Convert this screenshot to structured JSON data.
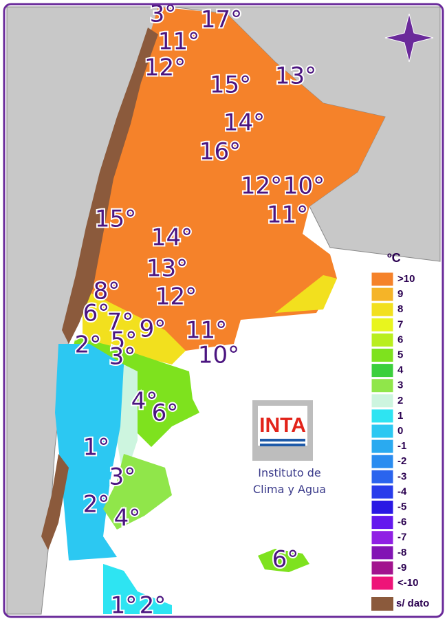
{
  "map": {
    "labels": [
      "3°",
      "17°",
      "11°",
      "12°",
      "15°",
      "13°",
      "14°",
      "16°",
      "12°",
      "10°",
      "11°",
      "15°",
      "14°",
      "13°",
      "12°",
      "8°",
      "6°",
      "7°",
      "9°",
      "11°",
      "5°",
      "2°",
      "3°",
      "10°",
      "4°",
      "6°",
      "1°",
      "3°",
      "2°",
      "4°",
      "6°",
      "1°",
      "2°"
    ],
    "legend": {
      "title": "ºC",
      "items": [
        {
          "label": ">10",
          "color": "#f5822a"
        },
        {
          "label": "9",
          "color": "#f5b428"
        },
        {
          "label": "8",
          "color": "#f2e01e"
        },
        {
          "label": "7",
          "color": "#e8f51e"
        },
        {
          "label": "6",
          "color": "#b9ee1e"
        },
        {
          "label": "5",
          "color": "#7ee21e"
        },
        {
          "label": "4",
          "color": "#3ccf3c"
        },
        {
          "label": "3",
          "color": "#90e64a"
        },
        {
          "label": "2",
          "color": "#cdf5df"
        },
        {
          "label": "1",
          "color": "#2ee4f2"
        },
        {
          "label": "0",
          "color": "#2cc8f2"
        },
        {
          "label": "-1",
          "color": "#2aaaf0"
        },
        {
          "label": "-2",
          "color": "#2a8cf0"
        },
        {
          "label": "-3",
          "color": "#2a64ee"
        },
        {
          "label": "-4",
          "color": "#283ceb"
        },
        {
          "label": "-5",
          "color": "#2a18e4"
        },
        {
          "label": "-6",
          "color": "#6418ee"
        },
        {
          "label": "-7",
          "color": "#9020e4"
        },
        {
          "label": "-8",
          "color": "#8214b4"
        },
        {
          "label": "-9",
          "color": "#a2148e"
        },
        {
          "label": "<-10",
          "color": "#ee1478"
        }
      ],
      "no_data": "s/ dato",
      "no_data_color": "#8b5a3c"
    },
    "logo": {
      "text": "INTA",
      "caption": [
        "Instituto de",
        "Clima y Agua"
      ]
    }
  }
}
